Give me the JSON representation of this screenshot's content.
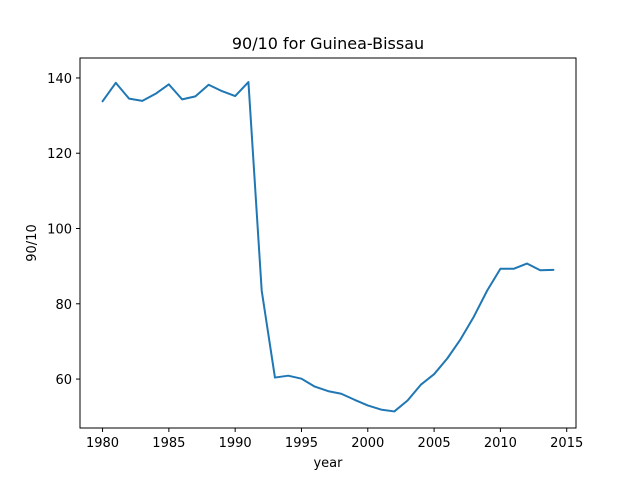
{
  "chart_data": {
    "type": "line",
    "title": "90/10 for Guinea-Bissau",
    "xlabel": "year",
    "ylabel": "90/10",
    "xlim": [
      1978.3,
      2015.7
    ],
    "ylim": [
      47.0,
      145.3
    ],
    "xticks": [
      1980,
      1985,
      1990,
      1995,
      2000,
      2005,
      2010,
      2015
    ],
    "yticks": [
      60,
      80,
      100,
      120,
      140
    ],
    "grid": false,
    "line_color": "#1f77b4",
    "series": [
      {
        "x": [
          1980,
          1981,
          1982,
          1983,
          1984,
          1985,
          1986,
          1987,
          1988,
          1989,
          1990,
          1991,
          1992,
          1993,
          1994,
          1995,
          1996,
          1997,
          1998,
          1999,
          2000,
          2001,
          2002,
          2003,
          2004,
          2005,
          2006,
          2007,
          2008,
          2009,
          2010,
          2011,
          2012,
          2013,
          2014
        ],
        "y": [
          133.8,
          138.7,
          134.5,
          133.9,
          135.8,
          138.3,
          134.3,
          135.1,
          138.2,
          136.5,
          135.2,
          138.9,
          83.5,
          60.4,
          60.9,
          60.1,
          58.0,
          56.8,
          56.1,
          54.5,
          53.0,
          51.9,
          51.4,
          54.3,
          58.5,
          61.3,
          65.5,
          70.6,
          76.6,
          83.5,
          89.3,
          89.3,
          90.7,
          88.9,
          89.0
        ]
      }
    ]
  }
}
